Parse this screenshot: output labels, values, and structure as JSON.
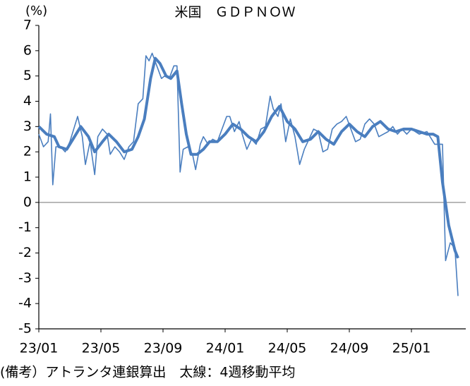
{
  "chart_data": {
    "type": "line",
    "title": "米国　ＧＤＰＮＯＷ",
    "y_unit": "(%)",
    "note": "(備考）アトランタ連銀算出　太線：4週移動平均",
    "xlim": [
      0,
      27.5
    ],
    "xticks": [
      {
        "value": 0,
        "label": "23/01"
      },
      {
        "value": 4,
        "label": "23/05"
      },
      {
        "value": 8,
        "label": "23/09"
      },
      {
        "value": 12,
        "label": "24/01"
      },
      {
        "value": 16,
        "label": "24/05"
      },
      {
        "value": 20,
        "label": "24/09"
      },
      {
        "value": 24,
        "label": "25/01"
      }
    ],
    "ylim": [
      -5,
      7
    ],
    "yticks": [
      -5,
      -4,
      -3,
      -2,
      -1,
      0,
      1,
      2,
      3,
      4,
      5,
      6,
      7
    ],
    "zero_line": true,
    "series": [
      {
        "color": "#4a7ebf",
        "line_width": 1.6,
        "x": [
          0,
          0.3,
          0.6,
          0.75,
          0.9,
          1.1,
          1.4,
          1.7,
          2.0,
          2.3,
          2.5,
          2.8,
          3.0,
          3.3,
          3.6,
          3.8,
          4.1,
          4.4,
          4.6,
          4.9,
          5.2,
          5.5,
          5.8,
          6.1,
          6.4,
          6.7,
          6.9,
          7.1,
          7.3,
          7.6,
          7.9,
          8.1,
          8.4,
          8.7,
          8.9,
          9.1,
          9.3,
          9.6,
          9.9,
          10.1,
          10.4,
          10.6,
          10.9,
          11.2,
          11.5,
          11.8,
          12.1,
          12.3,
          12.6,
          12.9,
          13.1,
          13.4,
          13.7,
          14.0,
          14.3,
          14.6,
          14.9,
          15.1,
          15.4,
          15.6,
          15.9,
          16.2,
          16.5,
          16.8,
          17.1,
          17.4,
          17.7,
          18.0,
          18.3,
          18.6,
          18.9,
          19.2,
          19.5,
          19.8,
          20.1,
          20.4,
          20.7,
          21.0,
          21.3,
          21.6,
          21.9,
          22.2,
          22.5,
          22.8,
          23.1,
          23.4,
          23.7,
          24.0,
          24.5,
          25.0,
          25.5,
          26.0,
          26.2,
          26.5,
          26.8,
          27.0
        ],
        "values": [
          2.7,
          2.2,
          2.4,
          3.5,
          0.7,
          2.2,
          2.2,
          2.0,
          2.4,
          3.0,
          3.4,
          2.6,
          1.5,
          2.4,
          1.1,
          2.6,
          2.9,
          2.7,
          1.9,
          2.2,
          2.0,
          1.7,
          2.2,
          2.4,
          3.9,
          4.1,
          5.8,
          5.6,
          5.9,
          5.4,
          4.9,
          5.0,
          4.9,
          5.4,
          5.4,
          1.2,
          2.1,
          2.2,
          1.9,
          1.3,
          2.3,
          2.6,
          2.3,
          2.5,
          2.4,
          2.9,
          3.4,
          3.4,
          2.8,
          3.2,
          2.7,
          2.1,
          2.5,
          2.3,
          2.9,
          3.0,
          4.2,
          3.7,
          3.4,
          3.9,
          2.4,
          3.3,
          2.6,
          1.5,
          2.1,
          2.5,
          2.9,
          2.8,
          2.0,
          2.1,
          2.9,
          3.1,
          3.2,
          3.4,
          2.9,
          2.4,
          2.5,
          3.1,
          3.3,
          3.1,
          2.6,
          2.7,
          2.8,
          3.0,
          2.7,
          2.9,
          2.7,
          2.9,
          2.7,
          2.8,
          2.3,
          2.3,
          -2.3,
          -1.6,
          -1.8,
          -3.7
        ]
      },
      {
        "color": "#4a7ebf",
        "line_width": 4,
        "x": [
          0,
          0.5,
          1.0,
          1.3,
          1.8,
          2.2,
          2.7,
          3.2,
          3.6,
          4.1,
          4.5,
          5.0,
          5.5,
          6.0,
          6.4,
          6.8,
          7.2,
          7.5,
          7.8,
          8.2,
          8.5,
          8.9,
          9.2,
          9.5,
          9.8,
          10.2,
          10.6,
          11.0,
          11.5,
          12.0,
          12.5,
          13.0,
          13.5,
          14.0,
          14.5,
          15.0,
          15.5,
          16.0,
          16.5,
          17.0,
          17.5,
          18.0,
          18.5,
          19.0,
          19.5,
          20.0,
          20.5,
          21.0,
          21.5,
          22.0,
          22.5,
          23.0,
          23.5,
          24.0,
          24.5,
          25.0,
          25.4,
          25.7,
          26.0,
          26.4,
          26.8,
          27.0
        ],
        "values": [
          3.0,
          2.7,
          2.6,
          2.2,
          2.1,
          2.5,
          3.0,
          2.6,
          2.0,
          2.4,
          2.7,
          2.4,
          2.0,
          2.1,
          2.6,
          3.3,
          4.9,
          5.7,
          5.5,
          5.0,
          4.9,
          5.2,
          3.9,
          2.7,
          1.9,
          1.9,
          2.1,
          2.4,
          2.4,
          2.7,
          3.1,
          2.9,
          2.6,
          2.4,
          2.8,
          3.4,
          3.8,
          3.2,
          2.9,
          2.4,
          2.5,
          2.8,
          2.5,
          2.3,
          2.8,
          3.1,
          2.8,
          2.6,
          3.0,
          3.2,
          2.9,
          2.8,
          2.9,
          2.9,
          2.8,
          2.7,
          2.7,
          2.6,
          0.8,
          -0.9,
          -1.9,
          -2.2
        ]
      }
    ]
  }
}
